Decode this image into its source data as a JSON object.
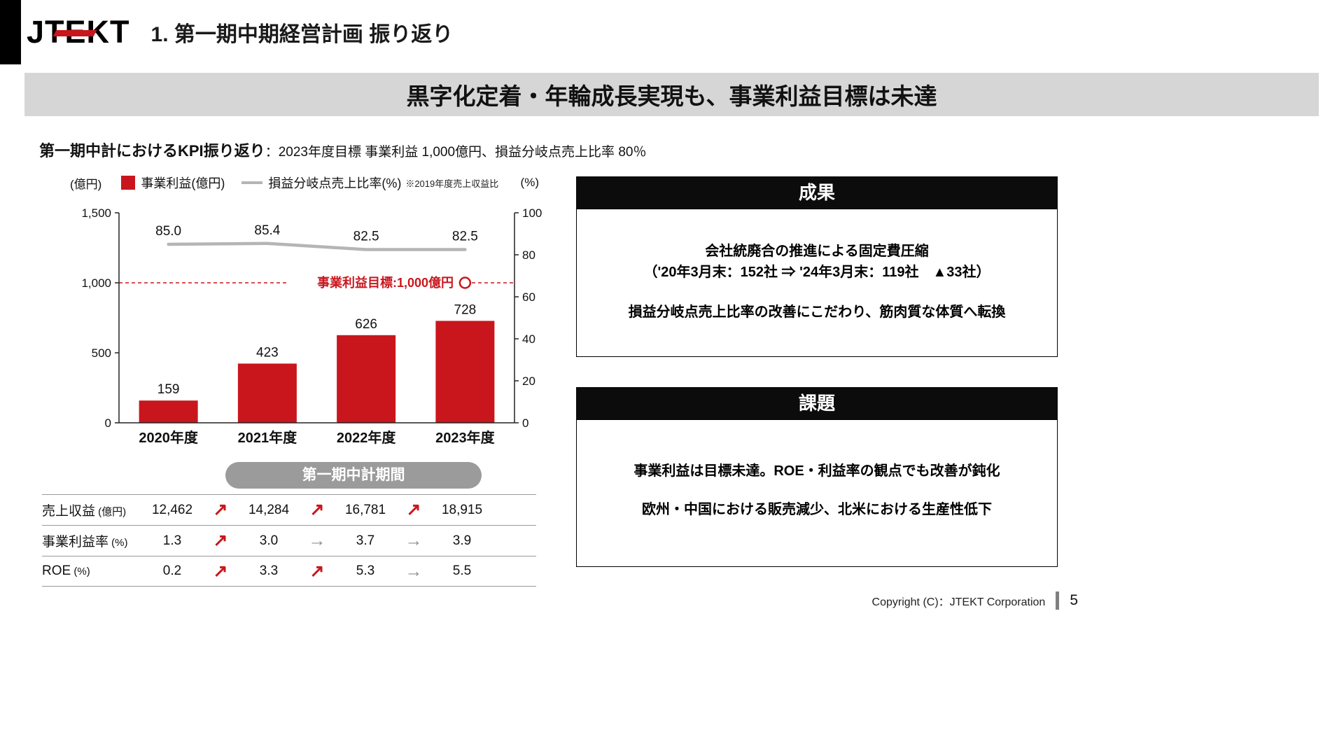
{
  "header": {
    "logo": "JTEKT",
    "title": "1. 第一期中期経営計画 振り返り"
  },
  "banner": "黒字化定着・年輪成長実現も、事業利益目標は未達",
  "kpi_line": {
    "label": "第一期中計におけるKPI振り返り",
    "detail": "：2023年度目標 事業利益 1,000億円、損益分岐点売上比率 80％"
  },
  "chart_data": {
    "type": "bar",
    "title": "第一期中計におけるKPI振り返り",
    "categories": [
      "2020年度",
      "2021年度",
      "2022年度",
      "2023年度"
    ],
    "series": [
      {
        "name": "事業利益(億円)",
        "type": "bar",
        "axis": "left",
        "color": "#c9161d",
        "values": [
          159,
          423,
          626,
          728
        ]
      },
      {
        "name": "損益分岐点売上比率(%)",
        "type": "line",
        "axis": "right",
        "color": "#b5b5b5",
        "values": [
          85.0,
          85.4,
          82.5,
          82.5
        ],
        "note": "※2019年度売上収益比"
      }
    ],
    "left_axis": {
      "unit": "(億円)",
      "min": 0,
      "max": 1500,
      "ticks": [
        0,
        500,
        1000,
        1500
      ],
      "tick_labels": [
        "0",
        "500",
        "1,000",
        "1,500"
      ]
    },
    "right_axis": {
      "unit": "(%)",
      "min": 0,
      "max": 100,
      "ticks": [
        0,
        20,
        40,
        60,
        80,
        100
      ],
      "tick_labels": [
        "0",
        "20",
        "40",
        "60",
        "80",
        "100"
      ]
    },
    "target": {
      "value": 1000,
      "label": "事業利益目標:1,000億円"
    },
    "period_label": "第一期中計期間",
    "legend_position": "top",
    "grid": false
  },
  "table": {
    "rows": [
      {
        "label": "売上収益",
        "unit": "(億円)",
        "values": [
          "12,462",
          "14,284",
          "16,781",
          "18,915"
        ],
        "trends": [
          "up",
          "up",
          "up"
        ]
      },
      {
        "label": "事業利益率",
        "unit": "(%)",
        "values": [
          "1.3",
          "3.0",
          "3.7",
          "3.9"
        ],
        "trends": [
          "up",
          "flat",
          "flat"
        ]
      },
      {
        "label": "ROE",
        "unit": "(%)",
        "values": [
          "0.2",
          "3.3",
          "5.3",
          "5.5"
        ],
        "trends": [
          "up",
          "up",
          "flat"
        ]
      }
    ],
    "trend_glyphs": {
      "up": "↗",
      "flat": "→"
    }
  },
  "boxes": [
    {
      "title": "成果",
      "lines": [
        "会社統廃合の推進による固定費圧縮",
        "（'20年3月末：152社 ⇒ '24年3月末：119社　▲33社）",
        "損益分岐点売上比率の改善にこだわり、筋肉質な体質へ転換"
      ]
    },
    {
      "title": "課題",
      "lines": [
        "事業利益は目標未達。ROE・利益率の観点でも改善が鈍化",
        "欧州・中国における販売減少、北米における生産性低下"
      ]
    }
  ],
  "footer": {
    "copyright": "Copyright (C)：JTEKT Corporation",
    "page": "5"
  },
  "colors": {
    "accent_red": "#c9161d",
    "line_gray": "#b5b5b5",
    "banner_bg": "#d6d6d6",
    "pill_bg": "#9b9b9b",
    "header_bar": "#0c0c0c"
  }
}
